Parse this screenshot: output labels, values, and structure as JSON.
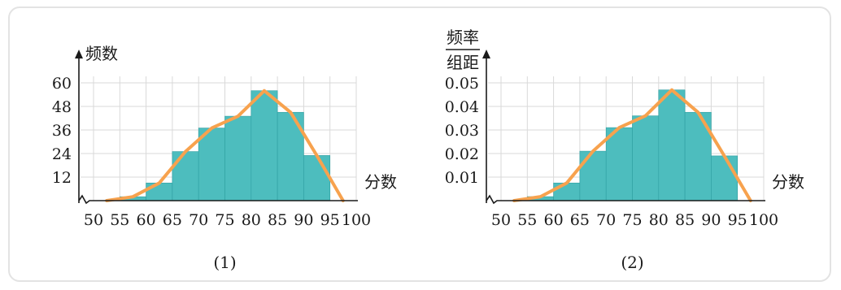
{
  "chart_data": [
    {
      "type": "bar",
      "caption": "(1)",
      "ylabel": "频数",
      "xlabel": "分数",
      "x_ticks": [
        "50",
        "55",
        "60",
        "65",
        "70",
        "75",
        "80",
        "85",
        "90",
        "95",
        "100"
      ],
      "y_ticks": [
        "12",
        "24",
        "36",
        "48",
        "60"
      ],
      "ylim": [
        0,
        60
      ],
      "bins": [
        {
          "from": 55,
          "to": 60,
          "value": 2
        },
        {
          "from": 60,
          "to": 65,
          "value": 9
        },
        {
          "from": 65,
          "to": 70,
          "value": 25
        },
        {
          "from": 70,
          "to": 75,
          "value": 37
        },
        {
          "from": 75,
          "to": 80,
          "value": 43
        },
        {
          "from": 80,
          "to": 85,
          "value": 56
        },
        {
          "from": 85,
          "to": 90,
          "value": 45
        },
        {
          "from": 90,
          "to": 95,
          "value": 23
        }
      ],
      "polygon": [
        [
          52.5,
          0
        ],
        [
          57.5,
          2
        ],
        [
          62.5,
          9
        ],
        [
          67.5,
          25
        ],
        [
          72.5,
          37
        ],
        [
          77.5,
          43
        ],
        [
          82.5,
          56
        ],
        [
          87.5,
          45
        ],
        [
          92.5,
          23
        ],
        [
          97.5,
          0
        ]
      ],
      "colors": {
        "bar": "#4dbdbe",
        "polygon": "#f7a24e"
      },
      "grid": true
    },
    {
      "type": "bar",
      "caption": "(2)",
      "ylabel_top": "频率",
      "ylabel_bottom": "组距",
      "xlabel": "分数",
      "x_ticks": [
        "50",
        "55",
        "60",
        "65",
        "70",
        "75",
        "80",
        "85",
        "90",
        "95",
        "100"
      ],
      "y_ticks": [
        "0.01",
        "0.02",
        "0.03",
        "0.04",
        "0.05"
      ],
      "ylim": [
        0,
        0.05
      ],
      "bins": [
        {
          "from": 55,
          "to": 60,
          "value": 0.0017
        },
        {
          "from": 60,
          "to": 65,
          "value": 0.0075
        },
        {
          "from": 65,
          "to": 70,
          "value": 0.021
        },
        {
          "from": 70,
          "to": 75,
          "value": 0.031
        },
        {
          "from": 75,
          "to": 80,
          "value": 0.036
        },
        {
          "from": 80,
          "to": 85,
          "value": 0.047
        },
        {
          "from": 85,
          "to": 90,
          "value": 0.0375
        },
        {
          "from": 90,
          "to": 95,
          "value": 0.019
        }
      ],
      "polygon": [
        [
          52.5,
          0
        ],
        [
          57.5,
          0.0017
        ],
        [
          62.5,
          0.0075
        ],
        [
          67.5,
          0.021
        ],
        [
          72.5,
          0.031
        ],
        [
          77.5,
          0.036
        ],
        [
          82.5,
          0.047
        ],
        [
          87.5,
          0.0375
        ],
        [
          92.5,
          0.019
        ],
        [
          97.5,
          0
        ]
      ],
      "colors": {
        "bar": "#4dbdbe",
        "polygon": "#f7a24e"
      },
      "grid": true
    }
  ]
}
